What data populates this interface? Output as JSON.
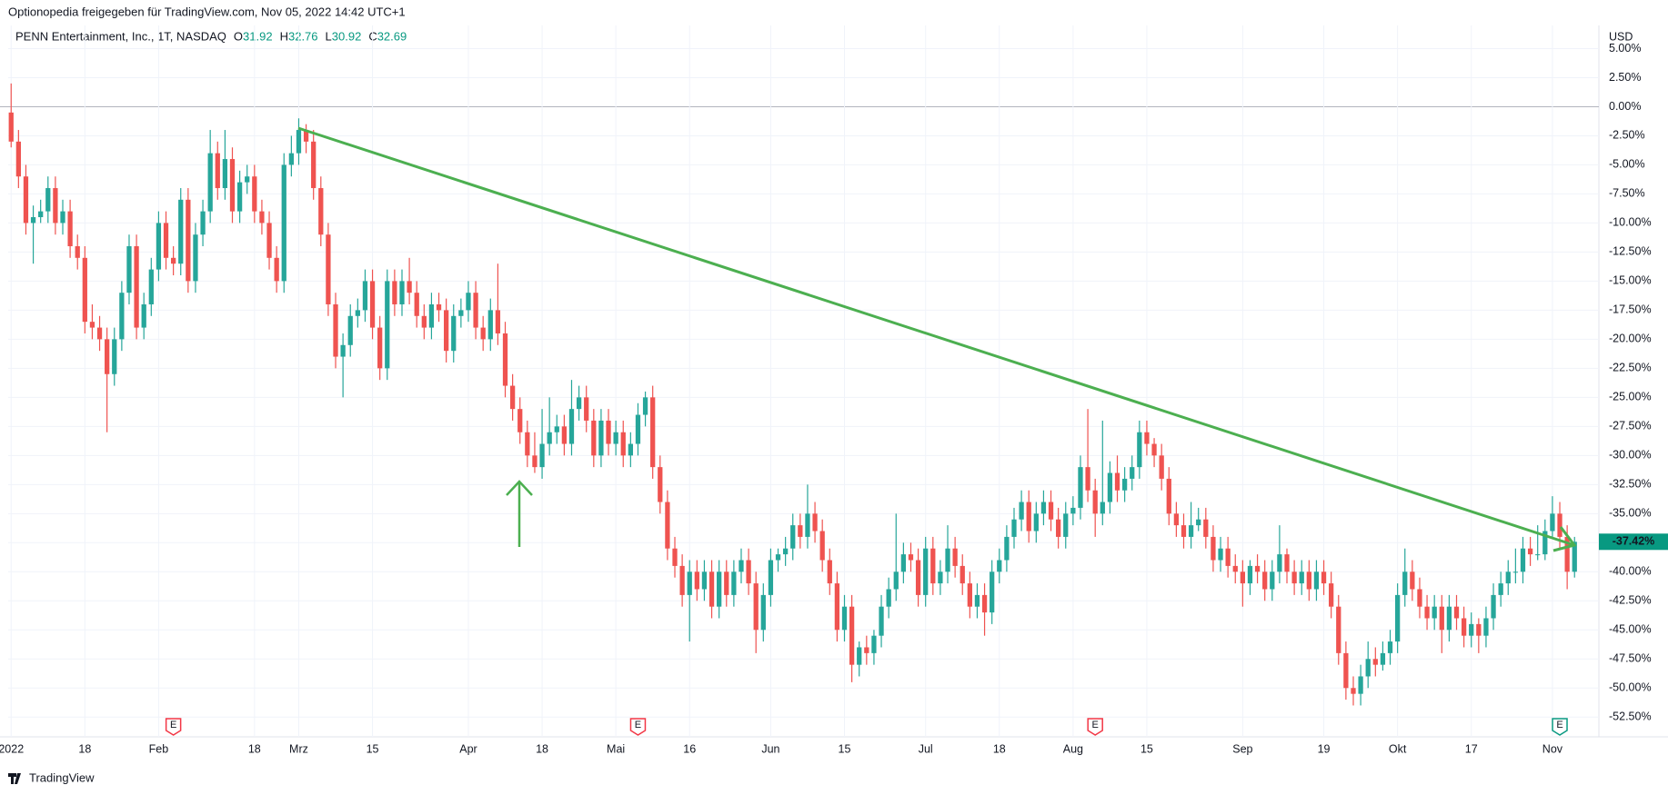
{
  "header": {
    "shared_by": "Optionopedia freigegeben für TradingView.com, Nov 05, 2022 14:42 UTC+1",
    "footer": "TradingView"
  },
  "chart_data": {
    "type": "candlestick",
    "title": "PENN Entertainment, Inc., 1T, NASDAQ",
    "ohlc_legend": [
      {
        "label": "O",
        "value": "31.92"
      },
      {
        "label": "H",
        "value": "32.76"
      },
      {
        "label": "L",
        "value": "30.92"
      },
      {
        "label": "C",
        "value": "32.69"
      }
    ],
    "currency": "USD",
    "up_color": "#26a69a",
    "down_color": "#ef5350",
    "grid": true,
    "last_value": -37.42,
    "last_value_label": "-37.42%",
    "ylim": [
      -54.2,
      6.6
    ],
    "xlim": [
      -0.4,
      215.3
    ],
    "yticks": [
      {
        "value": 5,
        "label": "5.00%"
      },
      {
        "value": 2.5,
        "label": "2.50%"
      },
      {
        "value": 0,
        "label": "0.00%"
      },
      {
        "value": -2.5,
        "label": "-2.50%"
      },
      {
        "value": -5,
        "label": "-5.00%"
      },
      {
        "value": -7.5,
        "label": "-7.50%"
      },
      {
        "value": -10,
        "label": "-10.00%"
      },
      {
        "value": -12.5,
        "label": "-12.50%"
      },
      {
        "value": -15,
        "label": "-15.00%"
      },
      {
        "value": -17.5,
        "label": "-17.50%"
      },
      {
        "value": -20,
        "label": "-20.00%"
      },
      {
        "value": -22.5,
        "label": "-22.50%"
      },
      {
        "value": -25,
        "label": "-25.00%"
      },
      {
        "value": -27.5,
        "label": "-27.50%"
      },
      {
        "value": -30,
        "label": "-30.00%"
      },
      {
        "value": -32.5,
        "label": "-32.50%"
      },
      {
        "value": -35,
        "label": "-35.00%"
      },
      {
        "value": -37.5,
        "label": "-37.50%"
      },
      {
        "value": -40,
        "label": "-40.00%"
      },
      {
        "value": -42.5,
        "label": "-42.50%"
      },
      {
        "value": -45,
        "label": "-45.00%"
      },
      {
        "value": -47.5,
        "label": "-47.50%"
      },
      {
        "value": -50,
        "label": "-50.00%"
      },
      {
        "value": -52.5,
        "label": "-52.50%"
      }
    ],
    "xticks": [
      {
        "value": 0,
        "label": "2022"
      },
      {
        "value": 10,
        "label": "18"
      },
      {
        "value": 20,
        "label": "Feb"
      },
      {
        "value": 33,
        "label": "18"
      },
      {
        "value": 39,
        "label": "Mrz"
      },
      {
        "value": 49,
        "label": "15"
      },
      {
        "value": 62,
        "label": "Apr"
      },
      {
        "value": 72,
        "label": "18"
      },
      {
        "value": 82,
        "label": "Mai"
      },
      {
        "value": 92,
        "label": "16"
      },
      {
        "value": 103,
        "label": "Jun"
      },
      {
        "value": 113,
        "label": "15"
      },
      {
        "value": 124,
        "label": "Jul"
      },
      {
        "value": 134,
        "label": "18"
      },
      {
        "value": 144,
        "label": "Aug"
      },
      {
        "value": 154,
        "label": "15"
      },
      {
        "value": 167,
        "label": "Sep"
      },
      {
        "value": 178,
        "label": "19"
      },
      {
        "value": 188,
        "label": "Okt"
      },
      {
        "value": 198,
        "label": "17"
      },
      {
        "value": 209,
        "label": "Nov"
      }
    ],
    "events": [
      {
        "x": 22,
        "label": "E",
        "color": "#f23645"
      },
      {
        "x": 85,
        "label": "E",
        "color": "#f23645"
      },
      {
        "x": 147,
        "label": "E",
        "color": "#f23645"
      },
      {
        "x": 210,
        "label": "E",
        "color": "#089981"
      }
    ],
    "ohlc": [
      [
        -0.5,
        2,
        -3.5,
        -3
      ],
      [
        -3,
        -2,
        -7,
        -6
      ],
      [
        -6,
        -5,
        -11,
        -10
      ],
      [
        -10,
        -8.5,
        -13.5,
        -9.5
      ],
      [
        -9.5,
        -8,
        -10,
        -9
      ],
      [
        -9,
        -6,
        -10,
        -7
      ],
      [
        -7,
        -6,
        -11,
        -10
      ],
      [
        -10,
        -8,
        -11,
        -9
      ],
      [
        -9,
        -8,
        -13,
        -12
      ],
      [
        -12,
        -11,
        -14,
        -13
      ],
      [
        -13,
        -12,
        -19.5,
        -18.5
      ],
      [
        -18.5,
        -17,
        -20,
        -19
      ],
      [
        -19,
        -18,
        -21,
        -20
      ],
      [
        -20,
        -19,
        -28,
        -23
      ],
      [
        -23,
        -19,
        -24,
        -20
      ],
      [
        -20,
        -15,
        -21,
        -16
      ],
      [
        -16,
        -11,
        -17,
        -12
      ],
      [
        -12,
        -11,
        -20,
        -19
      ],
      [
        -19,
        -16,
        -20,
        -17
      ],
      [
        -17,
        -13,
        -18,
        -14
      ],
      [
        -14,
        -9,
        -15,
        -10
      ],
      [
        -10,
        -9,
        -14,
        -13
      ],
      [
        -13,
        -12,
        -14.5,
        -13.5
      ],
      [
        -13.5,
        -7,
        -14.5,
        -8
      ],
      [
        -8,
        -7,
        -16,
        -15
      ],
      [
        -15,
        -10,
        -16,
        -11
      ],
      [
        -11,
        -8,
        -12,
        -9
      ],
      [
        -9,
        -2,
        -10,
        -4
      ],
      [
        -4,
        -3,
        -8,
        -7
      ],
      [
        -7,
        -2,
        -8,
        -4.5
      ],
      [
        -4.5,
        -3.5,
        -10,
        -9
      ],
      [
        -9,
        -5.5,
        -10,
        -6.5
      ],
      [
        -6.5,
        -5,
        -7.5,
        -6
      ],
      [
        -6,
        -5,
        -10,
        -9
      ],
      [
        -9,
        -8,
        -11,
        -10
      ],
      [
        -10,
        -9,
        -14,
        -13
      ],
      [
        -13,
        -12,
        -16,
        -15
      ],
      [
        -15,
        -4,
        -16,
        -5
      ],
      [
        -5,
        -2.5,
        -6,
        -4
      ],
      [
        -4,
        -1,
        -5,
        -2
      ],
      [
        -2,
        -1.5,
        -4,
        -3
      ],
      [
        -3,
        -2,
        -8,
        -7
      ],
      [
        -7,
        -6,
        -12,
        -11
      ],
      [
        -11,
        -10,
        -18,
        -17
      ],
      [
        -17,
        -16,
        -22.5,
        -21.5
      ],
      [
        -21.5,
        -19.5,
        -25,
        -20.5
      ],
      [
        -20.5,
        -17,
        -21.5,
        -18
      ],
      [
        -18,
        -16.5,
        -19,
        -17.5
      ],
      [
        -17.5,
        -14,
        -18.5,
        -15
      ],
      [
        -15,
        -14,
        -20,
        -19
      ],
      [
        -19,
        -18,
        -23.5,
        -22.5
      ],
      [
        -22.5,
        -14,
        -23.5,
        -15
      ],
      [
        -15,
        -14,
        -18,
        -17
      ],
      [
        -17,
        -14,
        -18,
        -15
      ],
      [
        -15,
        -13,
        -17,
        -16
      ],
      [
        -16,
        -15,
        -19,
        -18
      ],
      [
        -18,
        -17,
        -20,
        -19
      ],
      [
        -19,
        -16,
        -20,
        -17
      ],
      [
        -17,
        -16,
        -18.5,
        -17.5
      ],
      [
        -17.5,
        -16.5,
        -22,
        -21
      ],
      [
        -21,
        -17,
        -22,
        -18
      ],
      [
        -18,
        -16.5,
        -19,
        -17.5
      ],
      [
        -17.5,
        -15,
        -18.5,
        -16
      ],
      [
        -16,
        -15,
        -20,
        -19
      ],
      [
        -19,
        -18,
        -21,
        -20
      ],
      [
        -20,
        -16.5,
        -21,
        -17.5
      ],
      [
        -17.5,
        -13.5,
        -20.5,
        -19.5
      ],
      [
        -19.5,
        -18.5,
        -25,
        -24
      ],
      [
        -24,
        -23,
        -27,
        -26
      ],
      [
        -26,
        -25,
        -29,
        -28
      ],
      [
        -28,
        -27,
        -31,
        -30
      ],
      [
        -30,
        -28,
        -31.5,
        -31
      ],
      [
        -31,
        -26,
        -32,
        -29
      ],
      [
        -29,
        -25,
        -30,
        -28
      ],
      [
        -28,
        -26.5,
        -29,
        -27.5
      ],
      [
        -27.5,
        -26.5,
        -30,
        -29
      ],
      [
        -29,
        -23.5,
        -30,
        -26
      ],
      [
        -26,
        -24,
        -27,
        -25
      ],
      [
        -25,
        -24,
        -28,
        -27
      ],
      [
        -27,
        -26,
        -31,
        -30
      ],
      [
        -30,
        -26,
        -31,
        -27
      ],
      [
        -27,
        -26,
        -30,
        -29
      ],
      [
        -29,
        -27,
        -30,
        -28
      ],
      [
        -28,
        -27,
        -31,
        -30
      ],
      [
        -30,
        -28,
        -31,
        -29
      ],
      [
        -29,
        -25.5,
        -30,
        -26.5
      ],
      [
        -26.5,
        -24.5,
        -27.5,
        -25
      ],
      [
        -25,
        -24,
        -32,
        -31
      ],
      [
        -31,
        -30,
        -35,
        -34
      ],
      [
        -34,
        -33,
        -39,
        -38
      ],
      [
        -38,
        -37,
        -40.5,
        -39.5
      ],
      [
        -39.5,
        -38.5,
        -43,
        -42
      ],
      [
        -42,
        -39,
        -46,
        -40
      ],
      [
        -40,
        -39,
        -42.5,
        -41.5
      ],
      [
        -41.5,
        -39,
        -42.5,
        -40
      ],
      [
        -40,
        -39,
        -44,
        -43
      ],
      [
        -43,
        -39,
        -44,
        -40
      ],
      [
        -40,
        -39,
        -43,
        -42
      ],
      [
        -42,
        -39,
        -43,
        -40
      ],
      [
        -40,
        -38,
        -41,
        -39
      ],
      [
        -39,
        -38,
        -42,
        -41
      ],
      [
        -41,
        -40,
        -47,
        -45
      ],
      [
        -45,
        -41,
        -46,
        -42
      ],
      [
        -42,
        -38,
        -43,
        -39
      ],
      [
        -39,
        -38,
        -40,
        -38.5
      ],
      [
        -38.5,
        -37,
        -39.5,
        -38
      ],
      [
        -38,
        -35,
        -39,
        -36
      ],
      [
        -36,
        -35,
        -38,
        -37
      ],
      [
        -37,
        -32.5,
        -38,
        -35
      ],
      [
        -35,
        -34,
        -37.5,
        -36.5
      ],
      [
        -36.5,
        -35.5,
        -40,
        -39
      ],
      [
        -39,
        -38,
        -42,
        -41
      ],
      [
        -41,
        -40,
        -46,
        -45
      ],
      [
        -45,
        -42,
        -46,
        -43
      ],
      [
        -43,
        -42,
        -49.5,
        -48
      ],
      [
        -48,
        -46,
        -49,
        -46.5
      ],
      [
        -46.5,
        -45.5,
        -48,
        -47
      ],
      [
        -47,
        -45,
        -48,
        -45.5
      ],
      [
        -45.5,
        -42,
        -46.5,
        -43
      ],
      [
        -43,
        -40.5,
        -44,
        -41.5
      ],
      [
        -41.5,
        -35,
        -42.5,
        -40
      ],
      [
        -40,
        -37.5,
        -41,
        -38.5
      ],
      [
        -38.5,
        -37.5,
        -40,
        -39
      ],
      [
        -39,
        -38,
        -43,
        -42
      ],
      [
        -42,
        -37,
        -43,
        -38
      ],
      [
        -38,
        -37,
        -42,
        -41
      ],
      [
        -41,
        -39,
        -42,
        -40
      ],
      [
        -40,
        -36,
        -41,
        -38
      ],
      [
        -38,
        -37,
        -40.5,
        -39.5
      ],
      [
        -39.5,
        -38.5,
        -42,
        -41
      ],
      [
        -41,
        -40,
        -44,
        -43
      ],
      [
        -43,
        -41,
        -44,
        -42
      ],
      [
        -42,
        -41,
        -45.5,
        -43.5
      ],
      [
        -43.5,
        -39,
        -44.5,
        -40
      ],
      [
        -40,
        -38,
        -41,
        -39
      ],
      [
        -39,
        -36,
        -40,
        -37
      ],
      [
        -37,
        -34.5,
        -38,
        -35.5
      ],
      [
        -35.5,
        -33,
        -36.5,
        -34
      ],
      [
        -34,
        -33,
        -37.5,
        -36.5
      ],
      [
        -36.5,
        -34,
        -37.5,
        -35
      ],
      [
        -35,
        -33,
        -36,
        -34
      ],
      [
        -34,
        -33,
        -36.5,
        -35.5
      ],
      [
        -35.5,
        -34.5,
        -38,
        -37
      ],
      [
        -37,
        -34,
        -38,
        -35
      ],
      [
        -35,
        -33.5,
        -36,
        -34.5
      ],
      [
        -34.5,
        -30,
        -35.5,
        -31
      ],
      [
        -31,
        -26,
        -34,
        -33
      ],
      [
        -33,
        -32,
        -37,
        -35
      ],
      [
        -35,
        -27,
        -36,
        -34
      ],
      [
        -34,
        -30.5,
        -35,
        -31.5
      ],
      [
        -31.5,
        -30,
        -34,
        -33
      ],
      [
        -33,
        -31,
        -34,
        -32
      ],
      [
        -32,
        -30,
        -33,
        -31
      ],
      [
        -31,
        -27,
        -32,
        -28
      ],
      [
        -28,
        -27,
        -30,
        -29
      ],
      [
        -29,
        -28.5,
        -31,
        -30
      ],
      [
        -30,
        -29,
        -33,
        -32
      ],
      [
        -32,
        -31,
        -36,
        -35
      ],
      [
        -35,
        -34,
        -37,
        -36
      ],
      [
        -36,
        -35,
        -38,
        -37
      ],
      [
        -37,
        -34,
        -38,
        -36
      ],
      [
        -36,
        -34.5,
        -36.5,
        -35.5
      ],
      [
        -35.5,
        -34.5,
        -38,
        -37
      ],
      [
        -37,
        -36,
        -40,
        -39
      ],
      [
        -39,
        -37,
        -40,
        -38
      ],
      [
        -38,
        -37,
        -40.5,
        -39.5
      ],
      [
        -39.5,
        -38.5,
        -41,
        -40
      ],
      [
        -40,
        -39,
        -43,
        -41
      ],
      [
        -41,
        -39,
        -42,
        -39.5
      ],
      [
        -39.5,
        -38.5,
        -41,
        -40
      ],
      [
        -40,
        -39,
        -42.5,
        -41.5
      ],
      [
        -41.5,
        -39,
        -42.5,
        -40
      ],
      [
        -40,
        -36,
        -41,
        -38.5
      ],
      [
        -38.5,
        -38,
        -41,
        -40
      ],
      [
        -40,
        -39,
        -42,
        -41
      ],
      [
        -41,
        -39,
        -42,
        -40
      ],
      [
        -40,
        -39,
        -42.5,
        -41.5
      ],
      [
        -41.5,
        -39,
        -42.5,
        -40
      ],
      [
        -40,
        -39,
        -42,
        -41
      ],
      [
        -41,
        -40,
        -44,
        -43
      ],
      [
        -43,
        -42,
        -48,
        -47
      ],
      [
        -47,
        -46,
        -51,
        -50
      ],
      [
        -50,
        -49,
        -51.5,
        -50.5
      ],
      [
        -50.5,
        -48,
        -51.5,
        -49
      ],
      [
        -49,
        -46,
        -50,
        -47.5
      ],
      [
        -47.5,
        -46.5,
        -49,
        -48
      ],
      [
        -48,
        -46,
        -48.5,
        -47
      ],
      [
        -47,
        -45,
        -48,
        -46
      ],
      [
        -46,
        -41,
        -47,
        -42
      ],
      [
        -42,
        -38,
        -43,
        -40
      ],
      [
        -40,
        -39,
        -42.5,
        -41.5
      ],
      [
        -41.5,
        -40.5,
        -44,
        -43
      ],
      [
        -43,
        -42,
        -45,
        -44
      ],
      [
        -44,
        -42,
        -45,
        -43
      ],
      [
        -43,
        -42,
        -47,
        -45
      ],
      [
        -45,
        -42,
        -46,
        -43
      ],
      [
        -43,
        -42,
        -45,
        -44
      ],
      [
        -44,
        -43,
        -46.5,
        -45.5
      ],
      [
        -45.5,
        -43.5,
        -46.5,
        -44.5
      ],
      [
        -44.5,
        -44,
        -47,
        -45.5
      ],
      [
        -45.5,
        -43,
        -46.5,
        -44
      ],
      [
        -44,
        -41,
        -45,
        -42
      ],
      [
        -42,
        -40,
        -43,
        -41
      ],
      [
        -41,
        -39,
        -42,
        -40
      ],
      [
        -40,
        -38,
        -41,
        -40
      ],
      [
        -40,
        -37,
        -41,
        -38
      ],
      [
        -38,
        -37,
        -39.5,
        -38.5
      ],
      [
        -38.5,
        -36,
        -39,
        -38.5
      ],
      [
        -38.5,
        -35.5,
        -39,
        -36.5
      ],
      [
        -36.5,
        -33.5,
        -37,
        -35
      ],
      [
        -35,
        -34,
        -38,
        -37
      ],
      [
        -37,
        -36,
        -41.5,
        -40
      ],
      [
        -40,
        -37,
        -40.5,
        -37.42
      ]
    ]
  }
}
